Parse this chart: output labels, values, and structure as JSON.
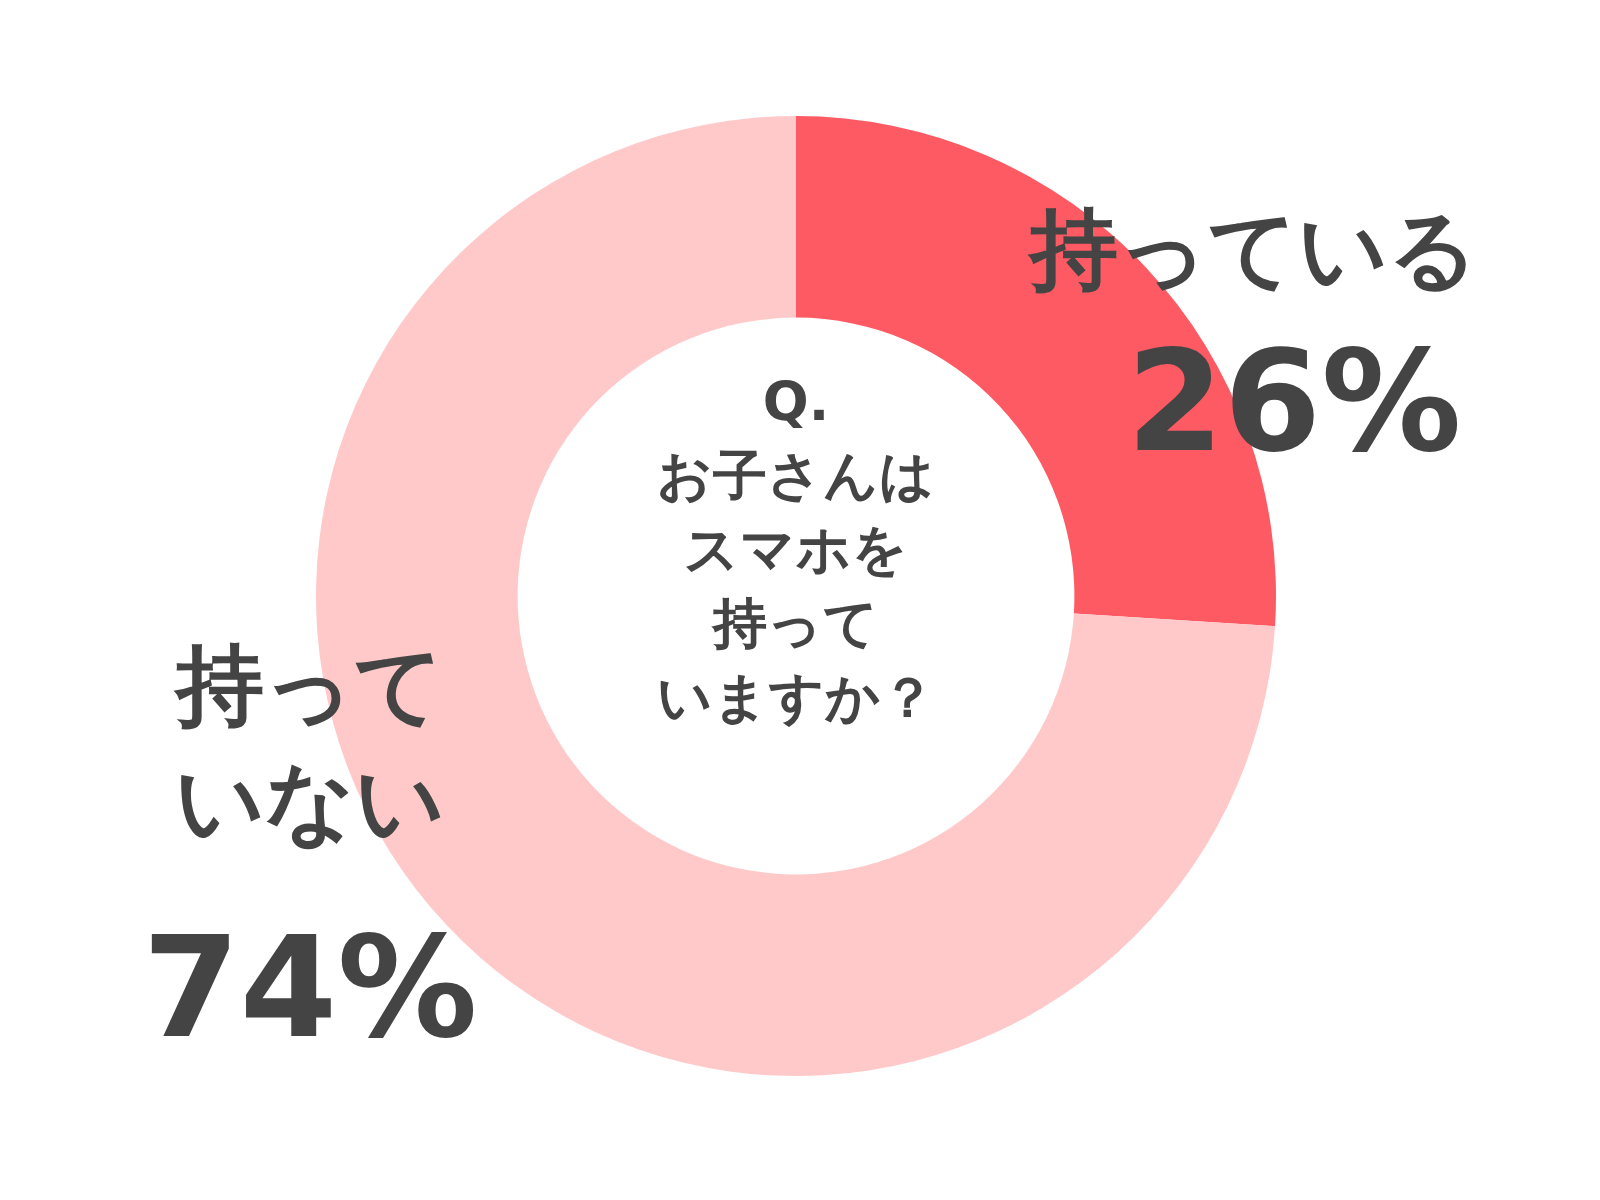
{
  "chart_data": {
    "type": "donut",
    "title": "Q.\nお子さんはスマホを持っていますか？",
    "categories": [
      "持っている",
      "持っていない"
    ],
    "values": [
      26,
      74
    ],
    "colors": [
      "#fe5a63",
      "#ffc9ca"
    ],
    "value_labels": [
      "26%",
      "74%"
    ],
    "legend": false
  }
}
